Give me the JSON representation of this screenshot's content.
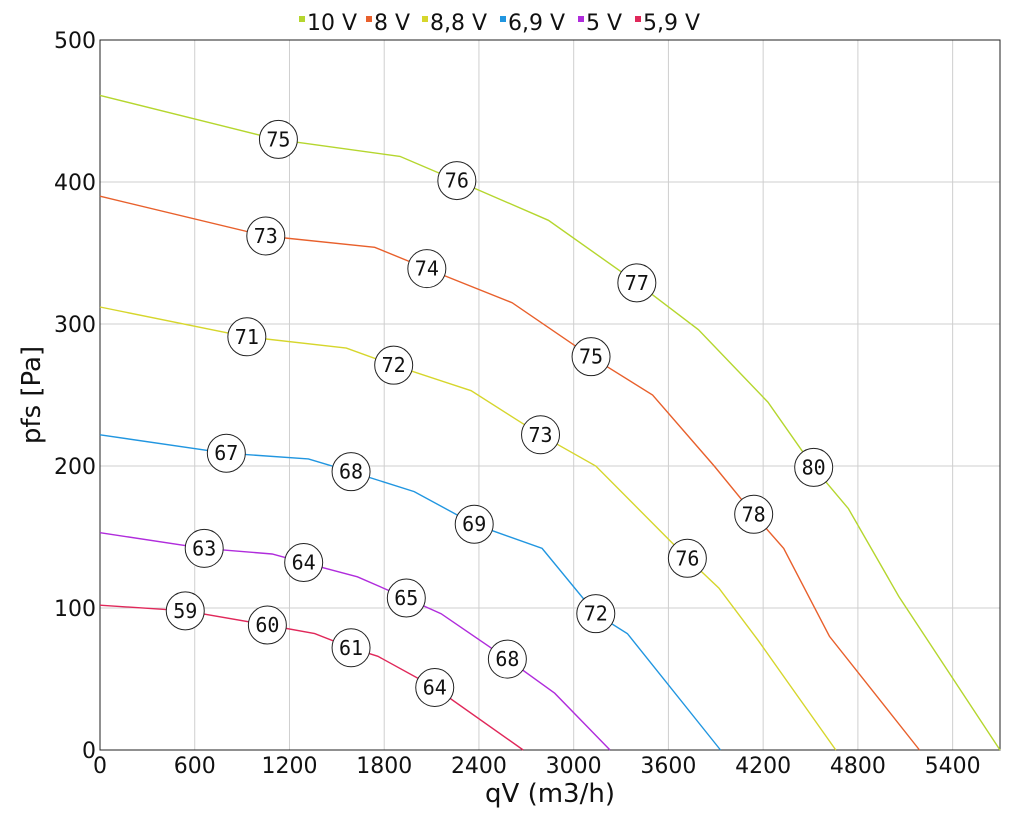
{
  "chart_data": {
    "type": "line",
    "xlabel": "qV (m3/h)",
    "ylabel": "pfs [Pa]",
    "xlim": [
      0,
      5700
    ],
    "ylim": [
      0,
      500
    ],
    "xticks": [
      0,
      600,
      1200,
      1800,
      2400,
      3000,
      3600,
      4200,
      4800,
      5400
    ],
    "yticks": [
      0,
      100,
      200,
      300,
      400,
      500
    ],
    "grid": true,
    "legend_position": "top",
    "series": [
      {
        "name": "10 V",
        "color": "#b5d62e",
        "points": [
          [
            0,
            461
          ],
          [
            1120,
            430
          ],
          [
            1900,
            418
          ],
          [
            2260,
            401
          ],
          [
            2840,
            373
          ],
          [
            3400,
            329
          ],
          [
            3790,
            296
          ],
          [
            4230,
            245
          ],
          [
            4520,
            199
          ],
          [
            4740,
            170
          ],
          [
            5060,
            108
          ],
          [
            5700,
            0
          ]
        ],
        "labels": [
          {
            "x": 1130,
            "y": 430,
            "text": "75"
          },
          {
            "x": 2260,
            "y": 401,
            "text": "76"
          },
          {
            "x": 3400,
            "y": 329,
            "text": "77"
          },
          {
            "x": 4520,
            "y": 199,
            "text": "80"
          }
        ]
      },
      {
        "name": "8 V",
        "color": "#e8602c",
        "points": [
          [
            0,
            390
          ],
          [
            1050,
            362
          ],
          [
            1740,
            354
          ],
          [
            2070,
            339
          ],
          [
            2610,
            315
          ],
          [
            3110,
            277
          ],
          [
            3500,
            250
          ],
          [
            3890,
            200
          ],
          [
            4140,
            166
          ],
          [
            4330,
            142
          ],
          [
            4620,
            80
          ],
          [
            5190,
            0
          ]
        ],
        "labels": [
          {
            "x": 1050,
            "y": 362,
            "text": "73"
          },
          {
            "x": 2070,
            "y": 339,
            "text": "74"
          },
          {
            "x": 3110,
            "y": 277,
            "text": "75"
          },
          {
            "x": 4140,
            "y": 166,
            "text": "78"
          }
        ]
      },
      {
        "name": "8,8 V",
        "color": "#d6d62c",
        "points": [
          [
            0,
            312
          ],
          [
            930,
            291
          ],
          [
            1560,
            283
          ],
          [
            1860,
            271
          ],
          [
            2350,
            253
          ],
          [
            2790,
            222
          ],
          [
            3140,
            200
          ],
          [
            3720,
            135
          ],
          [
            3920,
            114
          ],
          [
            4170,
            77
          ],
          [
            4660,
            0
          ]
        ],
        "labels": [
          {
            "x": 930,
            "y": 291,
            "text": "71"
          },
          {
            "x": 1860,
            "y": 271,
            "text": "72"
          },
          {
            "x": 2790,
            "y": 222,
            "text": "73"
          },
          {
            "x": 3720,
            "y": 135,
            "text": "76"
          }
        ]
      },
      {
        "name": "6,9 V",
        "color": "#2196e0",
        "points": [
          [
            0,
            222
          ],
          [
            800,
            209
          ],
          [
            1320,
            205
          ],
          [
            1590,
            196
          ],
          [
            1990,
            182
          ],
          [
            2370,
            159
          ],
          [
            2800,
            142
          ],
          [
            3140,
            96
          ],
          [
            3340,
            82
          ],
          [
            3930,
            0
          ]
        ],
        "labels": [
          {
            "x": 800,
            "y": 209,
            "text": "67"
          },
          {
            "x": 1590,
            "y": 196,
            "text": "68"
          },
          {
            "x": 2370,
            "y": 159,
            "text": "69"
          },
          {
            "x": 3140,
            "y": 96,
            "text": "72"
          }
        ]
      },
      {
        "name": "5 V",
        "color": "#b02cdc",
        "points": [
          [
            0,
            153
          ],
          [
            660,
            142
          ],
          [
            1090,
            138
          ],
          [
            1290,
            132
          ],
          [
            1630,
            122
          ],
          [
            1940,
            107
          ],
          [
            2160,
            96
          ],
          [
            2580,
            64
          ],
          [
            2880,
            40
          ],
          [
            3230,
            0
          ]
        ],
        "labels": [
          {
            "x": 660,
            "y": 142,
            "text": "63"
          },
          {
            "x": 1290,
            "y": 132,
            "text": "64"
          },
          {
            "x": 1940,
            "y": 107,
            "text": "65"
          },
          {
            "x": 2580,
            "y": 64,
            "text": "68"
          }
        ]
      },
      {
        "name": "5,9 V",
        "color": "#e0285a",
        "points": [
          [
            0,
            102
          ],
          [
            540,
            98
          ],
          [
            1060,
            88
          ],
          [
            1360,
            82
          ],
          [
            1590,
            72
          ],
          [
            1760,
            66
          ],
          [
            2120,
            44
          ],
          [
            2680,
            0
          ]
        ],
        "labels": [
          {
            "x": 540,
            "y": 98,
            "text": "59"
          },
          {
            "x": 1060,
            "y": 88,
            "text": "60"
          },
          {
            "x": 1590,
            "y": 72,
            "text": "61"
          },
          {
            "x": 2120,
            "y": 44,
            "text": "64"
          }
        ]
      }
    ]
  }
}
